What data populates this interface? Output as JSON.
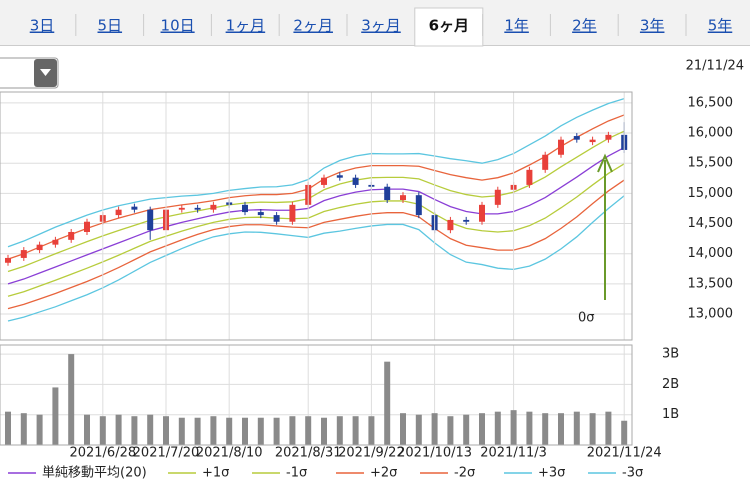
{
  "tabs": [
    "3日",
    "5日",
    "10日",
    "1ヶ月",
    "2ヶ月",
    "3ヶ月",
    "6ヶ月",
    "1年",
    "2年",
    "3年",
    "5年"
  ],
  "active_tab": 6,
  "date": "21/11/24",
  "chart_data": [
    {
      "type": "candlestick",
      "up_color": "#e8403a",
      "down_color": "#1f3f9a",
      "grid": true,
      "ylim": [
        12570,
        16680
      ],
      "yticks": [
        {
          "value": 13000,
          "label": "13,000"
        },
        {
          "value": 13500,
          "label": "13,500"
        },
        {
          "value": 14000,
          "label": "14,000"
        },
        {
          "value": 14500,
          "label": "14,500"
        },
        {
          "value": 15000,
          "label": "15,000"
        },
        {
          "value": 15500,
          "label": "15,500"
        },
        {
          "value": 16000,
          "label": "16,000"
        },
        {
          "value": 16500,
          "label": "16,500"
        }
      ],
      "open": [
        13850,
        13930,
        14060,
        14150,
        14230,
        14360,
        14530,
        14640,
        14780,
        14730,
        14390,
        14730,
        14760,
        14730,
        14850,
        14810,
        14690,
        14640,
        14530,
        14810,
        15140,
        15300,
        15260,
        15140,
        15110,
        14890,
        14970,
        14640,
        14390,
        14560,
        14530,
        14810,
        15060,
        15140,
        15390,
        15640,
        15950,
        15850,
        15890,
        15970
      ],
      "high": [
        13980,
        14110,
        14200,
        14280,
        14410,
        14580,
        14690,
        14780,
        14830,
        14780,
        14780,
        14810,
        14810,
        14860,
        14900,
        14860,
        14740,
        14690,
        14860,
        15190,
        15310,
        15350,
        15310,
        15190,
        15160,
        15020,
        15020,
        14690,
        14610,
        14610,
        14860,
        15110,
        15190,
        15440,
        15690,
        15940,
        16000,
        15940,
        16020,
        16180
      ],
      "low": [
        13800,
        13880,
        14010,
        14100,
        14180,
        14310,
        14480,
        14590,
        14680,
        14230,
        14340,
        14680,
        14680,
        14680,
        14760,
        14640,
        14590,
        14480,
        14480,
        14760,
        15090,
        15210,
        15090,
        15060,
        14840,
        14840,
        14590,
        14340,
        14340,
        14480,
        14480,
        14760,
        15010,
        15090,
        15340,
        15590,
        15840,
        15800,
        15840,
        15670
      ],
      "close": [
        13930,
        14060,
        14150,
        14230,
        14360,
        14530,
        14640,
        14730,
        14730,
        14390,
        14730,
        14760,
        14730,
        14810,
        14810,
        14690,
        14640,
        14530,
        14810,
        15140,
        15260,
        15260,
        15140,
        15110,
        14890,
        14970,
        14640,
        14390,
        14560,
        14530,
        14810,
        15060,
        15140,
        15390,
        15640,
        15890,
        15890,
        15890,
        15970,
        15720
      ],
      "series": [
        {
          "name": "単純移動平均(20)",
          "color": "#8a3fd6",
          "values": [
            13500,
            13580,
            13680,
            13780,
            13880,
            13980,
            14080,
            14180,
            14280,
            14380,
            14450,
            14520,
            14580,
            14640,
            14690,
            14720,
            14730,
            14720,
            14720,
            14750,
            14880,
            14960,
            15020,
            15060,
            15070,
            15070,
            15030,
            14900,
            14780,
            14700,
            14660,
            14660,
            14700,
            14800,
            14930,
            15100,
            15270,
            15450,
            15620,
            15760
          ]
        },
        {
          "name": "+1σ",
          "color": "#b7cc3c",
          "values": [
            13705,
            13790,
            13895,
            14000,
            14100,
            14200,
            14295,
            14385,
            14470,
            14555,
            14610,
            14665,
            14710,
            14760,
            14810,
            14840,
            14855,
            14850,
            14860,
            14910,
            15060,
            15155,
            15220,
            15260,
            15265,
            15265,
            15240,
            15140,
            15045,
            14980,
            14940,
            14960,
            15020,
            15135,
            15270,
            15440,
            15600,
            15760,
            15910,
            16030
          ]
        },
        {
          "name": "-1σ",
          "color": "#b7cc3c",
          "values": [
            13295,
            13370,
            13465,
            13560,
            13660,
            13760,
            13865,
            13975,
            14090,
            14205,
            14290,
            14375,
            14450,
            14520,
            14570,
            14600,
            14605,
            14590,
            14580,
            14590,
            14700,
            14765,
            14820,
            14860,
            14875,
            14875,
            14820,
            14660,
            14515,
            14420,
            14380,
            14360,
            14380,
            14465,
            14590,
            14760,
            14940,
            15140,
            15330,
            15490
          ]
        },
        {
          "name": "+2σ",
          "color": "#e8643c",
          "values": [
            13910,
            14000,
            14110,
            14220,
            14320,
            14420,
            14510,
            14590,
            14660,
            14730,
            14770,
            14810,
            14840,
            14880,
            14930,
            14960,
            14980,
            14980,
            15000,
            15070,
            15240,
            15350,
            15420,
            15460,
            15460,
            15460,
            15450,
            15380,
            15310,
            15260,
            15220,
            15260,
            15340,
            15470,
            15610,
            15780,
            15930,
            16070,
            16200,
            16300
          ]
        },
        {
          "name": "-2σ",
          "color": "#e8643c",
          "values": [
            13090,
            13160,
            13250,
            13340,
            13440,
            13540,
            13650,
            13770,
            13900,
            14030,
            14130,
            14230,
            14320,
            14400,
            14450,
            14480,
            14480,
            14460,
            14440,
            14430,
            14520,
            14570,
            14620,
            14660,
            14680,
            14680,
            14610,
            14420,
            14250,
            14140,
            14100,
            14060,
            14060,
            14130,
            14250,
            14420,
            14610,
            14830,
            15040,
            15220
          ]
        },
        {
          "name": "+3σ",
          "color": "#5cc6e0",
          "values": [
            14115,
            14210,
            14325,
            14440,
            14540,
            14640,
            14725,
            14795,
            14850,
            14905,
            14930,
            14955,
            14970,
            15000,
            15050,
            15080,
            15105,
            15110,
            15140,
            15230,
            15420,
            15545,
            15620,
            15660,
            15655,
            15655,
            15660,
            15620,
            15575,
            15540,
            15500,
            15560,
            15660,
            15805,
            15950,
            16120,
            16260,
            16380,
            16490,
            16570
          ]
        },
        {
          "name": "-3σ",
          "color": "#5cc6e0",
          "values": [
            12885,
            12950,
            13035,
            13120,
            13220,
            13320,
            13435,
            13565,
            13710,
            13855,
            13970,
            14085,
            14190,
            14280,
            14330,
            14360,
            14355,
            14330,
            14300,
            14270,
            14340,
            14375,
            14420,
            14460,
            14485,
            14485,
            14400,
            14180,
            13985,
            13860,
            13820,
            13760,
            13740,
            13795,
            13910,
            14080,
            14280,
            14520,
            14750,
            14960
          ]
        }
      ],
      "annotation": {
        "text": "0σ",
        "color": "#6a9a2a"
      }
    },
    {
      "type": "bar",
      "color": "#8a8a8a",
      "grid": true,
      "categories": [
        null,
        null,
        null,
        null,
        null,
        null,
        "2021/6/28",
        null,
        null,
        null,
        "2021/7/20",
        null,
        null,
        null,
        "2021/8/10",
        null,
        null,
        null,
        null,
        "2021/8/31",
        null,
        null,
        null,
        "2021/9/22",
        null,
        null,
        null,
        "2021/10/13",
        null,
        null,
        null,
        null,
        "2021/11/3",
        null,
        null,
        null,
        null,
        null,
        null,
        "2021/11/24"
      ],
      "values": [
        1.1,
        1.05,
        1.0,
        1.9,
        3.0,
        1.0,
        0.95,
        1.0,
        0.95,
        1.0,
        0.95,
        0.9,
        0.9,
        0.95,
        0.9,
        0.9,
        0.9,
        0.9,
        0.95,
        0.95,
        0.9,
        0.95,
        0.95,
        0.95,
        2.75,
        1.05,
        1.0,
        1.05,
        0.95,
        1.0,
        1.05,
        1.1,
        1.15,
        1.1,
        1.05,
        1.05,
        1.1,
        1.05,
        1.1,
        0.8
      ],
      "ylim": [
        0,
        3.3
      ],
      "yticks": [
        {
          "value": 1,
          "label": "1B"
        },
        {
          "value": 2,
          "label": "2B"
        },
        {
          "value": 3,
          "label": "3B"
        }
      ]
    }
  ]
}
